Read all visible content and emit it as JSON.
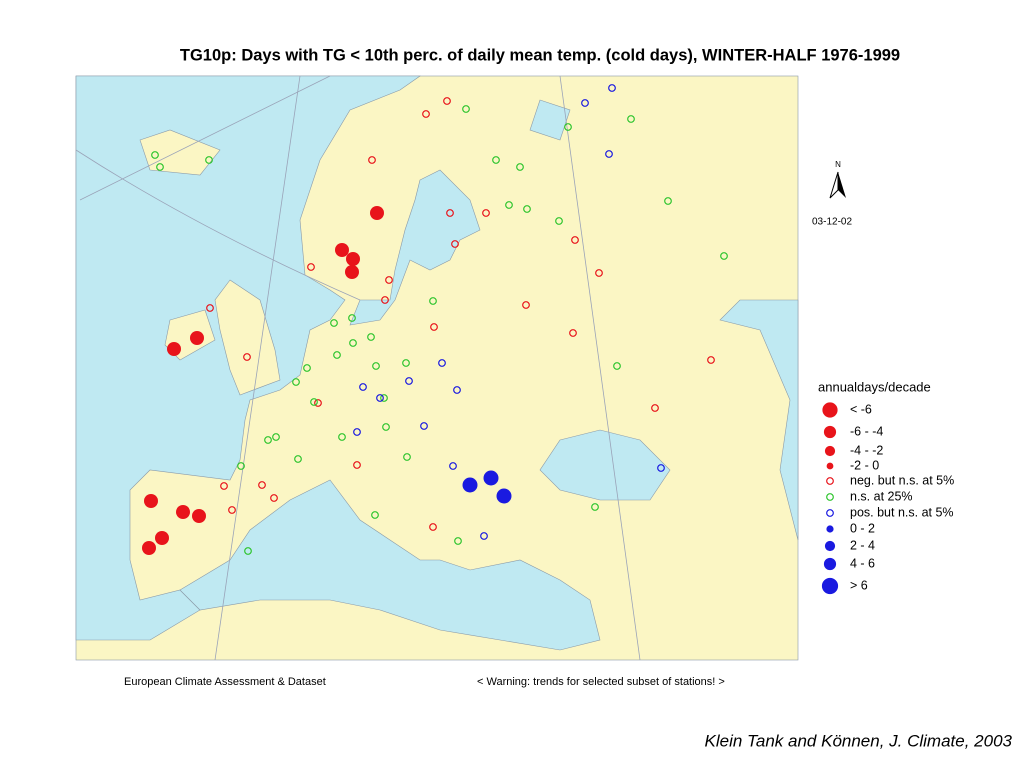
{
  "title": "TG10p: Days with TG < 10th perc. of daily mean temp. (cold days), WINTER-HALF 1976-1999",
  "north": "N",
  "date": "03-12-02",
  "legend": {
    "title": "annualdays/decade",
    "items": [
      "< -6",
      "-6 - -4",
      "-4 - -2",
      "-2 - 0",
      "neg. but n.s. at 5%",
      "n.s. at 25%",
      "pos. but n.s. at 5%",
      "0 - 2",
      "2 - 4",
      "4 - 6",
      "> 6"
    ]
  },
  "footer": {
    "left": "European Climate Assessment & Dataset",
    "right": "< Warning: trends for selected subset of stations! >"
  },
  "citation": "Klein Tank and Können, J. Climate, 2003"
}
